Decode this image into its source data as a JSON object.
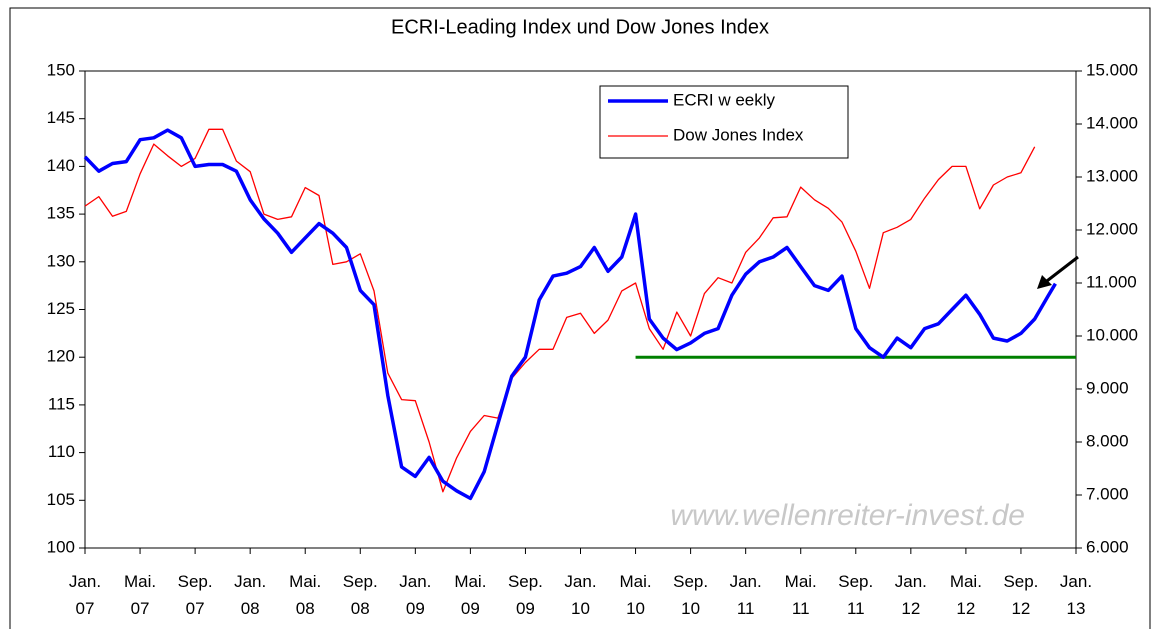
{
  "chart_data": {
    "type": "line",
    "title": "ECRI-Leading Index und Dow Jones Index",
    "watermark": "www.wellenreiter-invest.de",
    "xlim": [
      0,
      72
    ],
    "xticks": [
      {
        "value": 0,
        "label": "Jan. 07"
      },
      {
        "value": 4,
        "label": "Mai. 07"
      },
      {
        "value": 8,
        "label": "Sep. 07"
      },
      {
        "value": 12,
        "label": "Jan. 08"
      },
      {
        "value": 16,
        "label": "Mai. 08"
      },
      {
        "value": 20,
        "label": "Sep. 08"
      },
      {
        "value": 24,
        "label": "Jan. 09"
      },
      {
        "value": 28,
        "label": "Mai. 09"
      },
      {
        "value": 32,
        "label": "Sep. 09"
      },
      {
        "value": 36,
        "label": "Jan. 10"
      },
      {
        "value": 40,
        "label": "Mai. 10"
      },
      {
        "value": 44,
        "label": "Sep. 10"
      },
      {
        "value": 48,
        "label": "Jan. 11"
      },
      {
        "value": 52,
        "label": "Mai. 11"
      },
      {
        "value": 56,
        "label": "Sep. 11"
      },
      {
        "value": 60,
        "label": "Jan. 12"
      },
      {
        "value": 64,
        "label": "Mai. 12"
      },
      {
        "value": 68,
        "label": "Sep. 12"
      },
      {
        "value": 72,
        "label": "Jan. 13"
      }
    ],
    "ylim": [
      100,
      150
    ],
    "yticks": [
      100,
      105,
      110,
      115,
      120,
      125,
      130,
      135,
      140,
      145,
      150
    ],
    "y2lim": [
      6000,
      15000
    ],
    "y2ticks": [
      {
        "value": 6000,
        "label": "6.000"
      },
      {
        "value": 7000,
        "label": "7.000"
      },
      {
        "value": 8000,
        "label": "8.000"
      },
      {
        "value": 9000,
        "label": "9.000"
      },
      {
        "value": 10000,
        "label": "10.000"
      },
      {
        "value": 11000,
        "label": "11.000"
      },
      {
        "value": 12000,
        "label": "12.000"
      },
      {
        "value": 13000,
        "label": "13.000"
      },
      {
        "value": 14000,
        "label": "14.000"
      },
      {
        "value": 15000,
        "label": "15.000"
      }
    ],
    "legend": "top",
    "series": [
      {
        "name": "ECRI w eekly",
        "color": "#0000ff",
        "x": [
          0,
          1,
          2,
          3,
          4,
          5,
          6,
          7,
          8,
          9,
          10,
          11,
          12,
          13,
          14,
          15,
          16,
          17,
          18,
          19,
          20,
          21,
          22,
          23,
          24,
          25,
          26,
          27,
          28,
          29,
          30,
          31,
          32,
          33,
          34,
          35,
          36,
          37,
          38,
          39,
          40,
          41,
          42,
          43,
          44,
          45,
          46,
          47,
          48,
          49,
          50,
          51,
          52,
          53,
          54,
          55,
          56,
          57,
          58,
          59,
          60,
          61,
          62,
          63,
          64,
          65,
          66,
          67,
          68,
          69,
          70,
          70.5
        ],
        "values": [
          141,
          139.5,
          140.3,
          140.5,
          142.8,
          143,
          143.8,
          143,
          140,
          140.2,
          140.2,
          139.5,
          136.5,
          134.5,
          133,
          131,
          132.5,
          134,
          133,
          131.5,
          127,
          125.5,
          116,
          108.5,
          107.5,
          109.5,
          107,
          106,
          105.2,
          108,
          113,
          118,
          120,
          126,
          128.5,
          128.8,
          129.5,
          131.5,
          129,
          130.5,
          135,
          124,
          122,
          120.8,
          121.5,
          122.5,
          123,
          126.5,
          128.7,
          130,
          130.5,
          131.5,
          129.5,
          127.5,
          127,
          128.5,
          123,
          121,
          120,
          122,
          121,
          123,
          123.5,
          125,
          126.5,
          124.5,
          122,
          121.7,
          122.5,
          124,
          126.5,
          127.7
        ]
      },
      {
        "name": "Dow Jones Index",
        "color": "#ff0000",
        "axis": "y2",
        "x": [
          0,
          1,
          2,
          3,
          4,
          5,
          6,
          7,
          8,
          9,
          10,
          11,
          12,
          13,
          14,
          15,
          16,
          17,
          18,
          19,
          20,
          21,
          22,
          23,
          24,
          25,
          26,
          27,
          28,
          29,
          30,
          31,
          32,
          33,
          34,
          35,
          36,
          37,
          38,
          39,
          40,
          41,
          42,
          43,
          44,
          45,
          46,
          47,
          48,
          49,
          50,
          51,
          52,
          53,
          54,
          55,
          56,
          57,
          58,
          59,
          60,
          61,
          62,
          63,
          64,
          65,
          66,
          67,
          68,
          69
        ],
        "values": [
          12450,
          12630,
          12260,
          12350,
          13060,
          13620,
          13400,
          13200,
          13350,
          13900,
          13900,
          13300,
          13100,
          12300,
          12200,
          12250,
          12800,
          12650,
          11350,
          11400,
          11550,
          10850,
          9300,
          8800,
          8780,
          8000,
          7060,
          7700,
          8200,
          8500,
          8450,
          9200,
          9500,
          9750,
          9750,
          10350,
          10430,
          10050,
          10300,
          10850,
          11000,
          10140,
          9750,
          10450,
          10000,
          10800,
          11100,
          11000,
          11580,
          11850,
          12230,
          12250,
          12810,
          12570,
          12410,
          12150,
          11600,
          10900,
          11950,
          12050,
          12200,
          12600,
          12950,
          13200,
          13200,
          12400,
          12850,
          13000,
          13080,
          13570
        ]
      }
    ],
    "reference_line": {
      "color": "#008000",
      "y": 120,
      "x": [
        40,
        72
      ]
    }
  }
}
